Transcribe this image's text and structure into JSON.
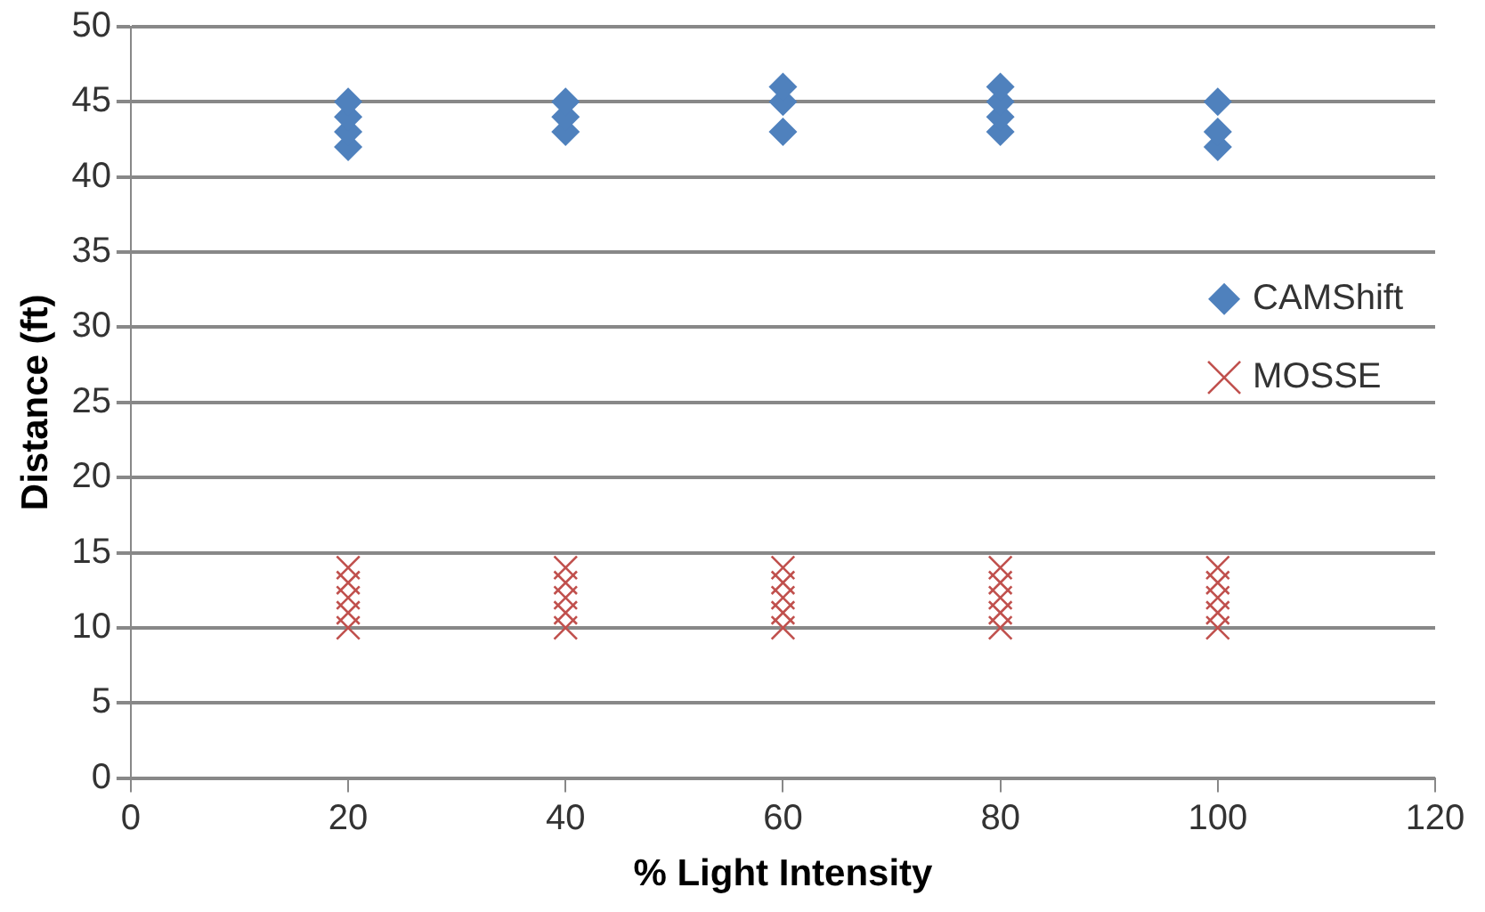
{
  "chart_data": {
    "type": "scatter",
    "xlabel": "% Light Intensity",
    "ylabel": "Distance (ft)",
    "series": [
      {
        "name": "CAMShift",
        "color": "#4f81bd",
        "marker": "diamond",
        "x": [
          20,
          20,
          20,
          20,
          40,
          40,
          40,
          60,
          60,
          60,
          80,
          80,
          80,
          80,
          100,
          100,
          100
        ],
        "values": [
          42,
          43,
          44,
          45,
          43,
          44,
          45,
          43,
          45,
          46,
          43,
          44,
          45,
          46,
          42,
          43,
          45
        ]
      },
      {
        "name": "MOSSE",
        "color": "#c0504d",
        "marker": "cross",
        "x": [
          20,
          20,
          20,
          20,
          20,
          40,
          40,
          40,
          40,
          40,
          60,
          60,
          60,
          60,
          60,
          80,
          80,
          80,
          80,
          80,
          100,
          100,
          100,
          100,
          100
        ],
        "values": [
          10,
          11,
          12,
          13,
          14,
          10,
          11,
          12,
          13,
          14,
          10,
          11,
          12,
          13,
          14,
          10,
          11,
          12,
          13,
          14,
          10,
          11,
          12,
          13,
          14
        ]
      }
    ],
    "xlim": [
      0,
      120
    ],
    "xticks": [
      0,
      20,
      40,
      60,
      80,
      100,
      120
    ],
    "ylim": [
      0,
      50
    ],
    "yticks": [
      0,
      5,
      10,
      15,
      20,
      25,
      30,
      35,
      40,
      45,
      50
    ],
    "grid": "y",
    "legend": "right"
  }
}
